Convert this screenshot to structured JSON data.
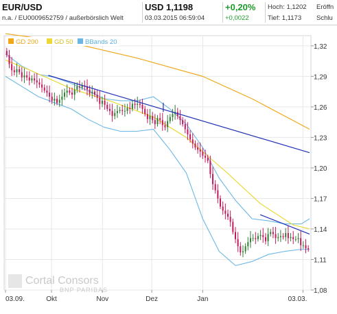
{
  "header": {
    "pair": "EUR/USD",
    "subtitle": "n.a. / EU0009652759 / außerbörslich Welt",
    "price": "USD 1,1198",
    "timestamp": "03.03.2015 06:59:04",
    "change_pct": "+0,20%",
    "change_abs": "+0,0022",
    "high": "Hoch: 1,1202",
    "low": "Tief: 1,1173",
    "open": "Eröffn",
    "close": "Schlu"
  },
  "colors": {
    "up": "#2e7d32",
    "down": "#c2185b",
    "gd200": "#f0a818",
    "gd50": "#ecd838",
    "bbands": "#6ab7e6",
    "trend": "#1c2db5",
    "positive": "#1e9a2b"
  },
  "watermark": {
    "line1": "Cortal Consors",
    "line2": "BNP PARIBAS"
  },
  "chart_data": {
    "type": "candlestick",
    "title": "",
    "xlabel": "",
    "ylabel": "",
    "ylim": [
      1.08,
      1.33
    ],
    "y_ticks": [
      "1,32",
      "1,29",
      "1,26",
      "1,23",
      "1,20",
      "1,17",
      "1,14",
      "1,11",
      "1,08"
    ],
    "y_tick_values": [
      1.32,
      1.29,
      1.26,
      1.23,
      1.2,
      1.17,
      1.14,
      1.11,
      1.08
    ],
    "x_ticks": [
      "03.09.",
      "Okt",
      "Nov",
      "Dez",
      "Jan",
      "03.03."
    ],
    "x_tick_days": [
      0,
      28,
      59,
      89,
      120,
      181
    ],
    "x_range_days": [
      0,
      185
    ],
    "grid": true,
    "legend_position": "top-left",
    "legend": [
      "GD 200",
      "GD 50",
      "BBands 20"
    ],
    "close_series": [
      1.311,
      1.302,
      1.296,
      1.294,
      1.297,
      1.294,
      1.289,
      1.291,
      1.289,
      1.286,
      1.288,
      1.286,
      1.284,
      1.282,
      1.279,
      1.276,
      1.274,
      1.27,
      1.266,
      1.268,
      1.264,
      1.267,
      1.27,
      1.274,
      1.276,
      1.274,
      1.272,
      1.277,
      1.28,
      1.279,
      1.281,
      1.28,
      1.277,
      1.273,
      1.275,
      1.272,
      1.269,
      1.263,
      1.266,
      1.262,
      1.258,
      1.256,
      1.251,
      1.254,
      1.256,
      1.257,
      1.256,
      1.256,
      1.259,
      1.258,
      1.263,
      1.262,
      1.263,
      1.262,
      1.258,
      1.253,
      1.248,
      1.251,
      1.247,
      1.243,
      1.249,
      1.247,
      1.242,
      1.24,
      1.246,
      1.25,
      1.253,
      1.255,
      1.251,
      1.247,
      1.243,
      1.238,
      1.233,
      1.228,
      1.224,
      1.22,
      1.218,
      1.216,
      1.212,
      1.21,
      1.207,
      1.194,
      1.184,
      1.178,
      1.17,
      1.162,
      1.158,
      1.155,
      1.152,
      1.147,
      1.137,
      1.13,
      1.123,
      1.117,
      1.118,
      1.123,
      1.127,
      1.131,
      1.131,
      1.13,
      1.133,
      1.134,
      1.132,
      1.128,
      1.135,
      1.137,
      1.135,
      1.131,
      1.132,
      1.133,
      1.132,
      1.136,
      1.131,
      1.132,
      1.13,
      1.13,
      1.131,
      1.124,
      1.124,
      1.121,
      1.12
    ],
    "series": [
      {
        "name": "GD 200",
        "x": [
          0,
          40,
          80,
          120,
          150,
          185
        ],
        "values": [
          1.332,
          1.323,
          1.308,
          1.29,
          1.268,
          1.238
        ]
      },
      {
        "name": "GD 50",
        "x": [
          0,
          15,
          40,
          65,
          90,
          110,
          135,
          155,
          175,
          185
        ],
        "values": [
          1.306,
          1.296,
          1.278,
          1.265,
          1.25,
          1.23,
          1.195,
          1.165,
          1.144,
          1.14
        ]
      },
      {
        "name": "BBands 20",
        "x": [
          0,
          10,
          20,
          30,
          40,
          50,
          60,
          70,
          80,
          90,
          100,
          110,
          120,
          130,
          140,
          150,
          160,
          170,
          180,
          185
        ],
        "upper": [
          1.312,
          1.3,
          1.292,
          1.289,
          1.283,
          1.276,
          1.268,
          1.266,
          1.266,
          1.27,
          1.258,
          1.243,
          1.22,
          1.19,
          1.168,
          1.15,
          1.148,
          1.145,
          1.145,
          1.15
        ],
        "lower": [
          1.29,
          1.28,
          1.27,
          1.264,
          1.258,
          1.248,
          1.24,
          1.236,
          1.236,
          1.238,
          1.218,
          1.195,
          1.15,
          1.118,
          1.104,
          1.108,
          1.115,
          1.118,
          1.12,
          1.12
        ]
      }
    ],
    "trend_lines": [
      {
        "x": [
          26,
          185
        ],
        "values": [
          1.291,
          1.215
        ]
      },
      {
        "x": [
          96,
          96
        ],
        "values": [
          1.264,
          1.255
        ]
      },
      {
        "x": [
          155,
          185
        ],
        "values": [
          1.154,
          1.135
        ]
      }
    ]
  }
}
